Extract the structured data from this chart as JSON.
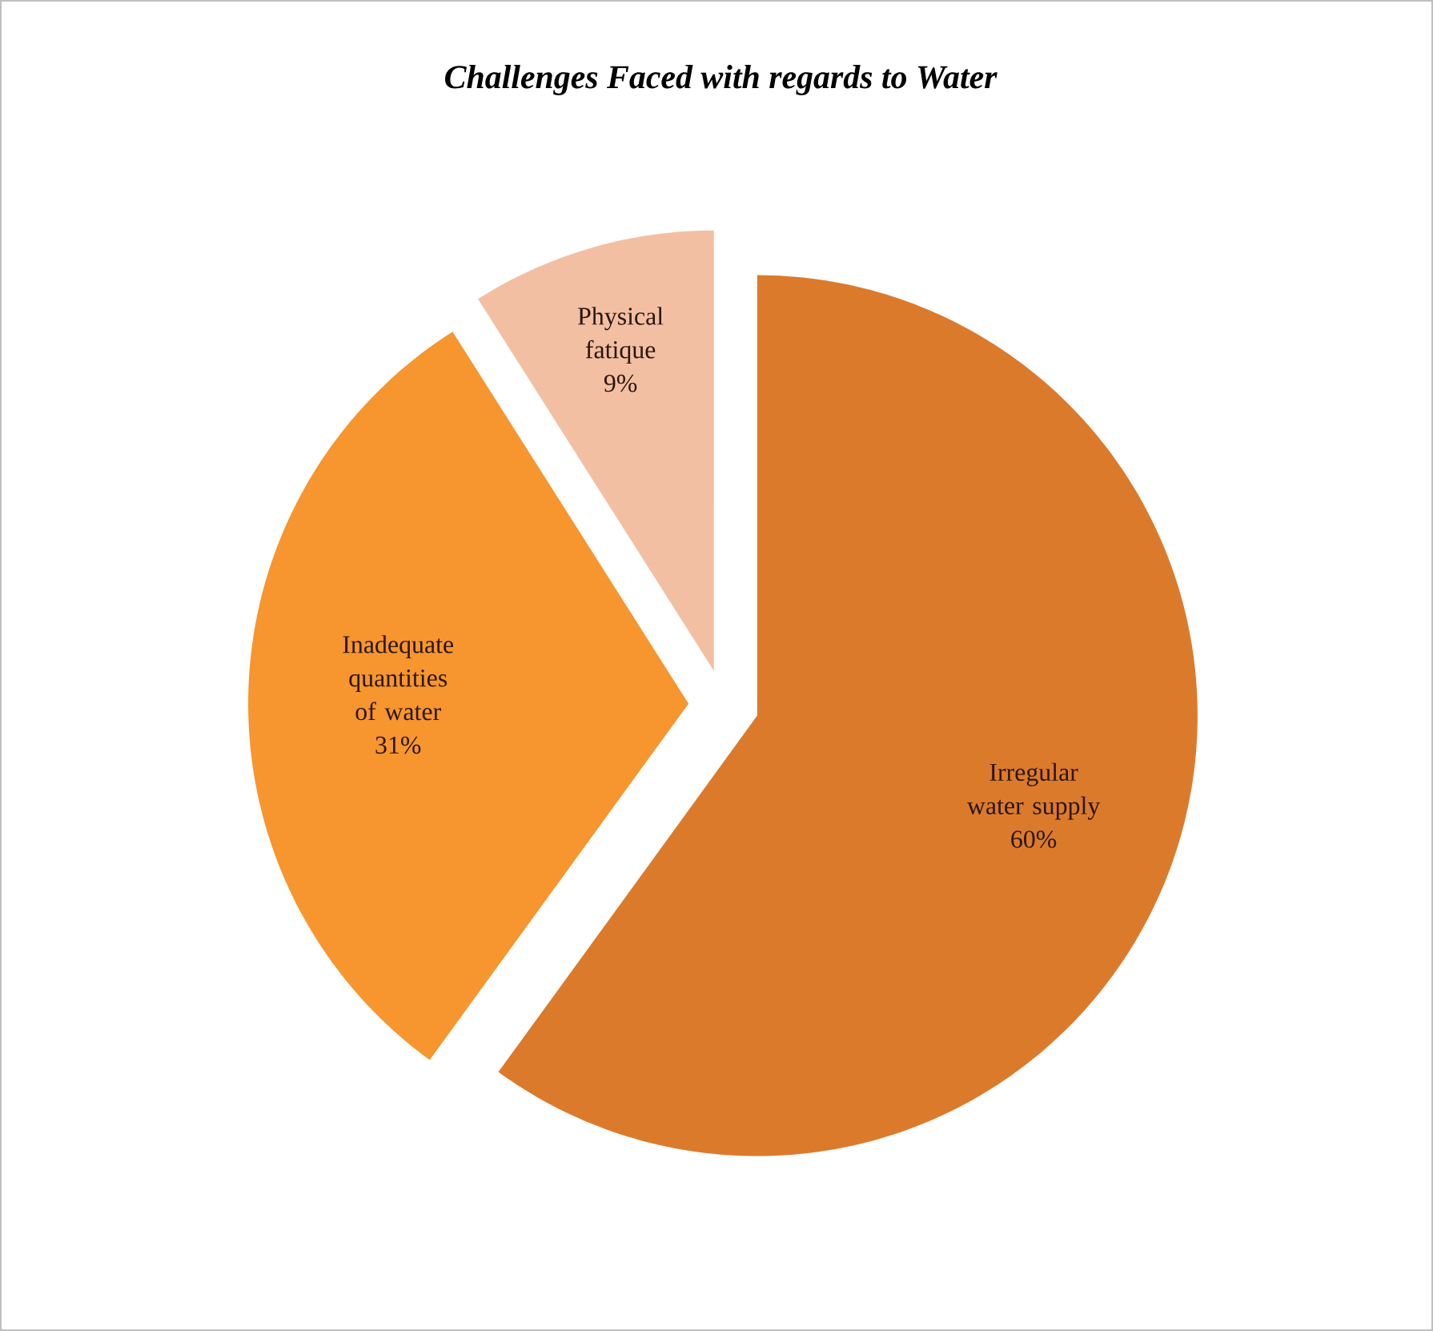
{
  "chart_data": {
    "type": "pie",
    "title": "Challenges Faced with regards to Water",
    "categories": [
      "Irregular water supply",
      "Inadequate quantities of water",
      "Physical fatique"
    ],
    "values": [
      60,
      31,
      9
    ],
    "colors": [
      "#dc7a2c",
      "#f7952e",
      "#f3bfa3"
    ],
    "value_labels": [
      "60%",
      "31%",
      "9%"
    ]
  }
}
